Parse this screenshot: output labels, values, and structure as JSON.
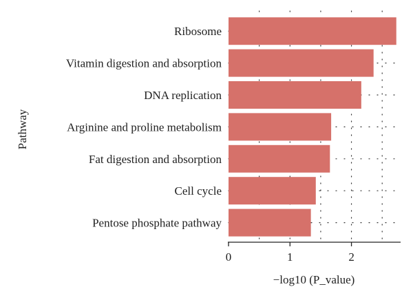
{
  "chart_data": {
    "type": "bar",
    "orientation": "horizontal",
    "categories": [
      "Ribosome",
      "Vitamin digestion and absorption",
      "DNA replication",
      "Arginine and proline metabolism",
      "Fat digestion and absorption",
      "Cell cycle",
      "Pentose phosphate pathway"
    ],
    "values": [
      2.73,
      2.36,
      2.16,
      1.67,
      1.65,
      1.42,
      1.34
    ],
    "xlabel": "−log10 (P_value)",
    "ylabel": "Pathway",
    "xlim": [
      0,
      2.8
    ],
    "xticks": [
      0,
      1,
      2
    ],
    "grid": "dotted",
    "bar_color": "#d6716a"
  }
}
